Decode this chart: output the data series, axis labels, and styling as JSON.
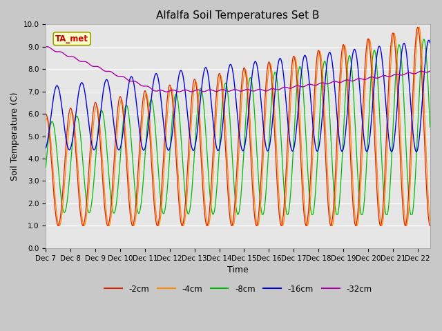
{
  "title": "Alfalfa Soil Temperatures Set B",
  "xlabel": "Time",
  "ylabel": "Soil Temperature (C)",
  "ylim": [
    0.0,
    10.0
  ],
  "colors": {
    "-2cm": "#dd2200",
    "-4cm": "#ff8800",
    "-8cm": "#00bb00",
    "-16cm": "#0000dd",
    "-32cm": "#aa00aa"
  },
  "annotation_box": {
    "text": "TA_met",
    "facecolor": "#ffffcc",
    "edgecolor": "#999900",
    "textcolor": "#cc0000"
  },
  "xtick_labels": [
    "Dec 7",
    "Dec 8",
    "Dec 9",
    "Dec 10",
    "Dec 11",
    "Dec 12",
    "Dec 13",
    "Dec 14",
    "Dec 15",
    "Dec 16",
    "Dec 17",
    "Dec 18",
    "Dec 19",
    "Dec 20",
    "Dec 21",
    "Dec 22"
  ],
  "title_fontsize": 11,
  "axis_fontsize": 9,
  "tick_fontsize": 7.5
}
